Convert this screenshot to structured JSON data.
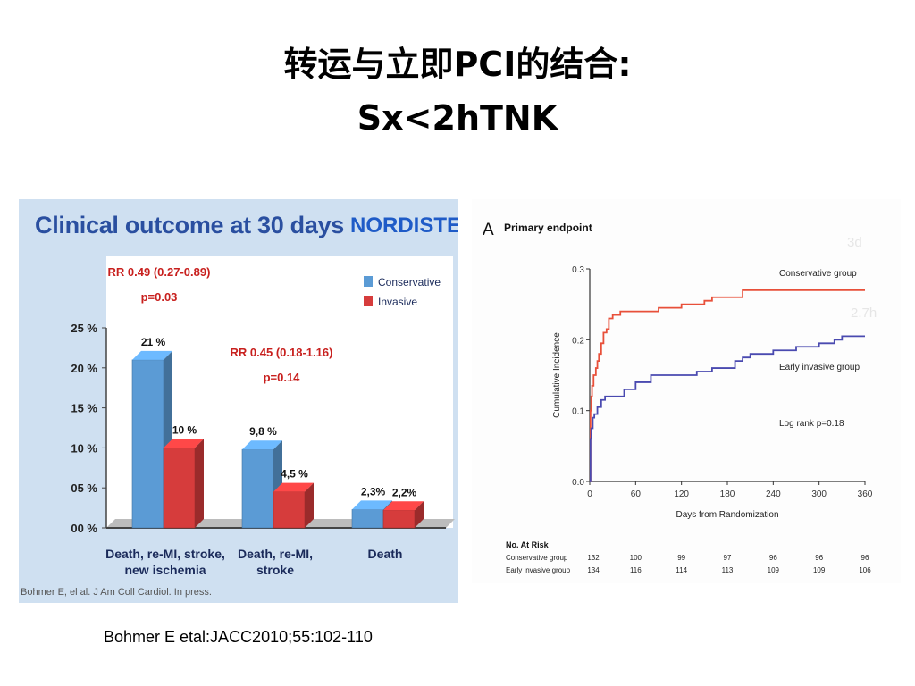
{
  "slide": {
    "title_line1": "转运与立即PCI的结合:",
    "title_line2": "Sx<2hTNK",
    "caption": "Bohmer E etal:JACC2010;55:102-110"
  },
  "colors": {
    "conservative": "#5b9bd5",
    "invasive": "#d63c3c",
    "panel_title": "#2a4fa0",
    "km_conservative": "#e8503a",
    "km_invasive": "#4a4ab0"
  },
  "chart_data": [
    {
      "type": "bar",
      "title": "Clinical outcome at 30 days",
      "brand": "NORDISTEM",
      "citation": "Bohmer E, el al. J Am Coll Cardiol. In press.",
      "categories": [
        "Death, re-MI, stroke, new ischemia",
        "Death, re-MI, stroke",
        "Death"
      ],
      "category_lines": [
        [
          "Death, re-MI, stroke,",
          "new ischemia"
        ],
        [
          "Death, re-MI,",
          "stroke"
        ],
        [
          "Death"
        ]
      ],
      "series": [
        {
          "name": "Conservative",
          "values": [
            21,
            9.8,
            2.3
          ],
          "labels": [
            "21 %",
            "9,8 %",
            "2,3%"
          ]
        },
        {
          "name": "Invasive",
          "values": [
            10,
            4.5,
            2.2
          ],
          "labels": [
            "10 %",
            "4,5 %",
            "2,2%"
          ]
        }
      ],
      "ylim": [
        0,
        25
      ],
      "yticks": [
        0,
        5,
        10,
        15,
        20,
        25
      ],
      "ytick_labels": [
        "00 %",
        "05 %",
        "10 %",
        "15 %",
        "20 %",
        "25 %"
      ],
      "annotations": [
        {
          "rr": "RR 0.49 (0.27-0.89)",
          "p": "p=0.03",
          "category": 0
        },
        {
          "rr": "RR 0.45 (0.18-1.16)",
          "p": "p=0.14",
          "category": 1
        }
      ],
      "legend_position": "top-right",
      "grid": false
    },
    {
      "type": "line",
      "panel_label": "A",
      "title": "Primary endpoint",
      "xlabel": "Days from Randomization",
      "ylabel": "Cumulative Incidence",
      "xlim": [
        0,
        360
      ],
      "ylim": [
        0,
        0.3
      ],
      "xticks": [
        0,
        60,
        120,
        180,
        240,
        300,
        360
      ],
      "yticks": [
        0.0,
        0.1,
        0.2,
        0.3
      ],
      "ytick_labels": [
        "0.0",
        "0.1",
        "0.2",
        "0.3"
      ],
      "series": [
        {
          "name": "Conservative group",
          "x": [
            0,
            1,
            2,
            3,
            5,
            8,
            10,
            12,
            15,
            18,
            22,
            25,
            30,
            40,
            55,
            70,
            90,
            120,
            150,
            160,
            200,
            240,
            300,
            360
          ],
          "y": [
            0.0,
            0.1,
            0.12,
            0.135,
            0.15,
            0.16,
            0.17,
            0.18,
            0.195,
            0.21,
            0.215,
            0.23,
            0.235,
            0.24,
            0.24,
            0.24,
            0.245,
            0.25,
            0.255,
            0.26,
            0.27,
            0.27,
            0.27,
            0.27
          ]
        },
        {
          "name": "Early invasive group",
          "x": [
            0,
            1,
            2,
            4,
            6,
            10,
            15,
            20,
            30,
            45,
            60,
            80,
            100,
            120,
            140,
            160,
            190,
            200,
            210,
            240,
            270,
            300,
            320,
            330,
            360
          ],
          "y": [
            0.0,
            0.06,
            0.075,
            0.09,
            0.095,
            0.105,
            0.115,
            0.12,
            0.12,
            0.13,
            0.14,
            0.15,
            0.15,
            0.15,
            0.155,
            0.16,
            0.17,
            0.175,
            0.18,
            0.185,
            0.19,
            0.195,
            0.2,
            0.205,
            0.205
          ]
        }
      ],
      "annotation": "Log rank p=0.18",
      "faint_labels": [
        "3d",
        "2.7h"
      ],
      "at_risk": {
        "title": "No. At Risk",
        "x": [
          0,
          60,
          120,
          180,
          240,
          300,
          360
        ],
        "rows": [
          {
            "group": "Conservative group",
            "values": [
              "132",
              "100",
              "99",
              "97",
              "96",
              "96",
              "96"
            ]
          },
          {
            "group": "Early invasive group",
            "values": [
              "134",
              "116",
              "114",
              "113",
              "109",
              "109",
              "106"
            ]
          }
        ]
      }
    }
  ]
}
